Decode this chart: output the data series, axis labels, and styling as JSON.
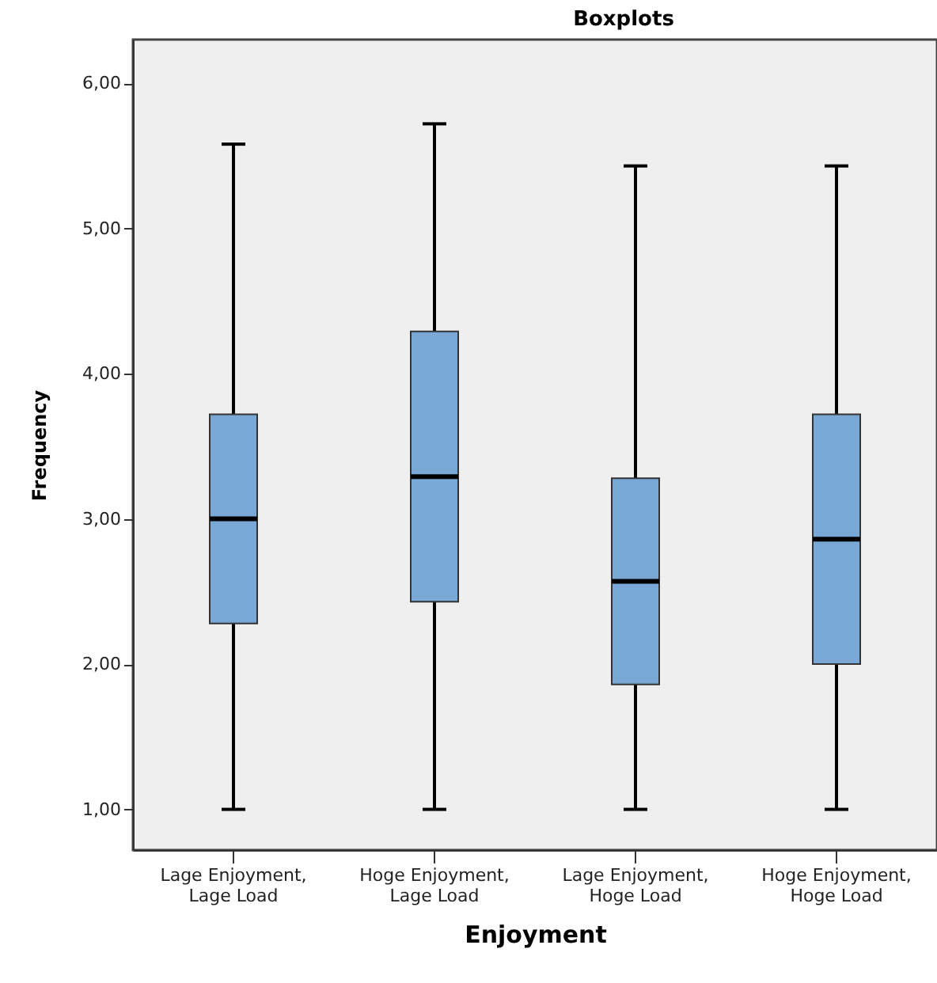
{
  "chart_data": {
    "type": "box",
    "title": "Boxplots",
    "xlabel": "Enjoyment",
    "ylabel": "Frequency",
    "categories": [
      "Lage Enjoyment, Lage Load",
      "Hoge Enjoyment, Lage Load",
      "Lage Enjoyment, Hoge Load",
      "Hoge Enjoyment, Hoge Load"
    ],
    "boxes": [
      {
        "low": 1.0,
        "q1": 2.28,
        "median": 3.0,
        "q3": 3.72,
        "high": 5.58
      },
      {
        "low": 1.0,
        "q1": 2.43,
        "median": 3.29,
        "q3": 4.29,
        "high": 5.72
      },
      {
        "low": 1.0,
        "q1": 1.86,
        "median": 2.57,
        "q3": 3.28,
        "high": 5.43
      },
      {
        "low": 1.0,
        "q1": 2.0,
        "median": 2.86,
        "q3": 3.72,
        "high": 5.43
      }
    ],
    "color": "#79a8d6",
    "ylim": [
      0.72,
      6.3
    ],
    "yticks": [
      {
        "value": 1,
        "label": "1,00"
      },
      {
        "value": 2,
        "label": "2,00"
      },
      {
        "value": 3,
        "label": "3,00"
      },
      {
        "value": 4,
        "label": "4,00"
      },
      {
        "value": 5,
        "label": "5,00"
      },
      {
        "value": 6,
        "label": "6,00"
      }
    ],
    "grid": false
  }
}
